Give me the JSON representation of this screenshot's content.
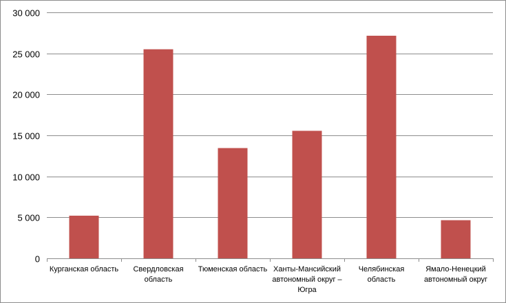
{
  "chart_data": {
    "type": "bar",
    "title": "",
    "xlabel": "",
    "ylabel": "",
    "categories": [
      [
        "Курганская область"
      ],
      [
        "Свердловская",
        "область"
      ],
      [
        "Тюменская область"
      ],
      [
        "Ханты-Мансийский",
        "автономный округ –",
        "Югра"
      ],
      [
        "Челябинская",
        "область"
      ],
      [
        "Ямало-Ненецкий",
        "автономный округ"
      ]
    ],
    "values": [
      5200,
      25500,
      13450,
      15550,
      27150,
      4650
    ],
    "ylim": [
      0,
      30000
    ],
    "yticks": [
      {
        "value": 0,
        "label": "0"
      },
      {
        "value": 5000,
        "label": "5 000"
      },
      {
        "value": 10000,
        "label": "10 000"
      },
      {
        "value": 15000,
        "label": "15 000"
      },
      {
        "value": 20000,
        "label": "20 000"
      },
      {
        "value": 25000,
        "label": "25 000"
      },
      {
        "value": 30000,
        "label": "30 000"
      }
    ],
    "grid": true,
    "legend": "none",
    "colors": {
      "bar": "#c0504d",
      "grid": "#8c8c8c",
      "axis": "#8c8c8c"
    }
  }
}
